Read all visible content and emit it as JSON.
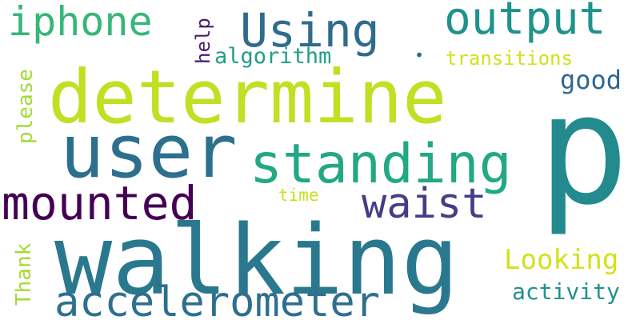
{
  "words": {
    "p": {
      "text": "p",
      "color": "#238a8d"
    },
    "walking": {
      "text": "walking",
      "color": "#2a788e"
    },
    "determine": {
      "text": "determine",
      "color": "#c2df23"
    },
    "user": {
      "text": "user",
      "color": "#2d708e"
    },
    "standing": {
      "text": "standing",
      "color": "#22a884"
    },
    "accelerometer": {
      "text": "accelerometer",
      "color": "#2e6f8e"
    },
    "mounted": {
      "text": "mounted",
      "color": "#440154"
    },
    "waist": {
      "text": "waist",
      "color": "#433e85"
    },
    "using": {
      "text": "Using",
      "color": "#2f6b8e"
    },
    "output": {
      "text": "output",
      "color": "#20928c"
    },
    "iphone": {
      "text": "iphone",
      "color": "#35b779"
    },
    "looking": {
      "text": "Looking",
      "color": "#d2e21b"
    },
    "good": {
      "text": "good",
      "color": "#31668e"
    },
    "activity": {
      "text": "activity",
      "color": "#21918c"
    },
    "transitions": {
      "text": "transitions",
      "color": "#d0e11c"
    },
    "algorithm": {
      "text": "algorithm",
      "color": "#1f9e89"
    },
    "thank": {
      "text": "Thank",
      "color": "#a5db36"
    },
    "please": {
      "text": "please",
      "color": "#a2da37"
    },
    "help": {
      "text": "help",
      "color": "#481b6d"
    },
    "time": {
      "text": "time",
      "color": "#c8e020"
    },
    "dot": {
      "text": "•",
      "color": "#2d708e"
    }
  }
}
